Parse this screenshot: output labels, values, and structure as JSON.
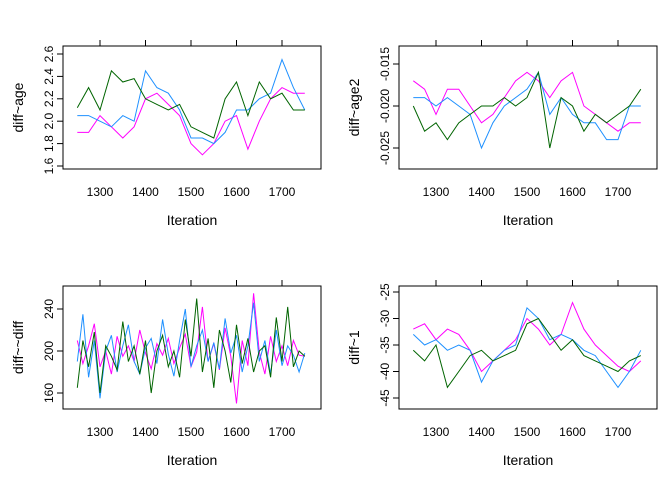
{
  "chart_data": [
    {
      "type": "line",
      "xlabel": "Iteration",
      "ylabel": "diff~age",
      "xlim": [
        1250,
        1750
      ],
      "ylim": [
        1.6,
        2.6
      ],
      "xticks": [
        "1300",
        "1400",
        "1500",
        "1600",
        "1700"
      ],
      "yticks": [
        "1.6",
        "1.8",
        "2.0",
        "2.2",
        "2.4",
        "2.6"
      ],
      "x_start": 1250,
      "x_step": 25,
      "series": [
        {
          "color": "#FF00FF",
          "values": [
            1.9,
            1.9,
            2.05,
            1.95,
            1.85,
            1.95,
            2.2,
            2.25,
            2.15,
            2.05,
            1.8,
            1.7,
            1.8,
            2.0,
            2.05,
            1.75,
            2.0,
            2.2,
            2.3,
            2.25,
            2.25
          ]
        },
        {
          "color": "#1E90FF",
          "values": [
            2.05,
            2.05,
            2.0,
            1.95,
            2.05,
            2.0,
            2.45,
            2.3,
            2.25,
            2.1,
            1.85,
            1.85,
            1.8,
            1.9,
            2.1,
            2.1,
            2.2,
            2.25,
            2.55,
            2.3,
            2.1
          ]
        },
        {
          "color": "#006400",
          "values": [
            2.12,
            2.3,
            2.1,
            2.45,
            2.35,
            2.38,
            2.2,
            2.15,
            2.1,
            2.15,
            1.95,
            1.9,
            1.85,
            2.2,
            2.35,
            2.05,
            2.35,
            2.2,
            2.25,
            2.1,
            2.1
          ]
        }
      ]
    },
    {
      "type": "line",
      "xlabel": "Iteration",
      "ylabel": "diff~age2",
      "xlim": [
        1250,
        1750
      ],
      "ylim": [
        -0.025,
        -0.015
      ],
      "xticks": [
        "1300",
        "1400",
        "1500",
        "1600",
        "1700"
      ],
      "yticks": [
        "-0.025",
        "-0.020",
        "-0.015"
      ],
      "x_start": 1250,
      "x_step": 25,
      "series": [
        {
          "color": "#FF00FF",
          "values": [
            -0.017,
            -0.018,
            -0.021,
            -0.018,
            -0.018,
            -0.02,
            -0.022,
            -0.021,
            -0.019,
            -0.017,
            -0.016,
            -0.017,
            -0.019,
            -0.017,
            -0.016,
            -0.02,
            -0.021,
            -0.022,
            -0.023,
            -0.022,
            -0.022
          ]
        },
        {
          "color": "#1E90FF",
          "values": [
            -0.019,
            -0.019,
            -0.02,
            -0.019,
            -0.02,
            -0.021,
            -0.025,
            -0.022,
            -0.02,
            -0.019,
            -0.018,
            -0.016,
            -0.021,
            -0.019,
            -0.021,
            -0.022,
            -0.022,
            -0.024,
            -0.024,
            -0.02,
            -0.02
          ]
        },
        {
          "color": "#006400",
          "values": [
            -0.02,
            -0.023,
            -0.022,
            -0.024,
            -0.022,
            -0.021,
            -0.02,
            -0.02,
            -0.019,
            -0.02,
            -0.019,
            -0.016,
            -0.025,
            -0.019,
            -0.02,
            -0.023,
            -0.021,
            -0.022,
            -0.021,
            -0.02,
            -0.018
          ]
        }
      ]
    },
    {
      "type": "line",
      "xlabel": "Iteration",
      "ylabel": "diff~~diff",
      "xlim": [
        1250,
        1750
      ],
      "ylim": [
        160,
        240
      ],
      "xticks": [
        "1300",
        "1400",
        "1500",
        "1600",
        "1700"
      ],
      "yticks": [
        "160",
        "200",
        "240"
      ],
      "x_start": 1250,
      "x_step": 12.5,
      "series": [
        {
          "color": "#FF00FF",
          "values": [
            210,
            188,
            205,
            226,
            185,
            200,
            178,
            214,
            195,
            205,
            190,
            220,
            198,
            183,
            207,
            196,
            212,
            188,
            203,
            216,
            185,
            199,
            242,
            190,
            207,
            182,
            222,
            195,
            150,
            210,
            186,
            255,
            199,
            178,
            214,
            190,
            205,
            186,
            210,
            196,
            195
          ]
        },
        {
          "color": "#1E90FF",
          "values": [
            190,
            235,
            175,
            210,
            155,
            200,
            215,
            180,
            205,
            225,
            190,
            178,
            203,
            212,
            188,
            230,
            197,
            176,
            210,
            240,
            185,
            205,
            220,
            190,
            208,
            183,
            231,
            198,
            215,
            180,
            205,
            246,
            190,
            210,
            178,
            220,
            186,
            205,
            196,
            180,
            198
          ]
        },
        {
          "color": "#006400",
          "values": [
            165,
            210,
            185,
            218,
            160,
            205,
            195,
            182,
            228,
            190,
            205,
            178,
            210,
            160,
            200,
            215,
            185,
            200,
            175,
            230,
            195,
            250,
            180,
            212,
            165,
            220,
            200,
            170,
            225,
            188,
            212,
            180,
            200,
            205,
            175,
            232,
            190,
            242,
            185,
            200,
            195
          ]
        }
      ]
    },
    {
      "type": "line",
      "xlabel": "Iteration",
      "ylabel": "diff~1",
      "xlim": [
        1250,
        1750
      ],
      "ylim": [
        -45,
        -25
      ],
      "xticks": [
        "1300",
        "1400",
        "1500",
        "1600",
        "1700"
      ],
      "yticks": [
        "-45",
        "-40",
        "-35",
        "-30",
        "-25"
      ],
      "x_start": 1250,
      "x_step": 25,
      "series": [
        {
          "color": "#FF00FF",
          "values": [
            -32,
            -31,
            -34,
            -32,
            -33,
            -36,
            -40,
            -38,
            -36,
            -34,
            -30,
            -32,
            -35,
            -33,
            -27,
            -32,
            -35,
            -37,
            -39,
            -40,
            -38
          ]
        },
        {
          "color": "#1E90FF",
          "values": [
            -33,
            -35,
            -34,
            -36,
            -35,
            -36,
            -42,
            -38,
            -36,
            -35,
            -28,
            -30,
            -34,
            -33,
            -34,
            -36,
            -37,
            -40,
            -43,
            -40,
            -36
          ]
        },
        {
          "color": "#006400",
          "values": [
            -36,
            -38,
            -35,
            -43,
            -40,
            -37,
            -36,
            -38,
            -37,
            -36,
            -31,
            -30,
            -33,
            -36,
            -34,
            -37,
            -38,
            -39,
            -40,
            -38,
            -37
          ]
        }
      ]
    }
  ]
}
